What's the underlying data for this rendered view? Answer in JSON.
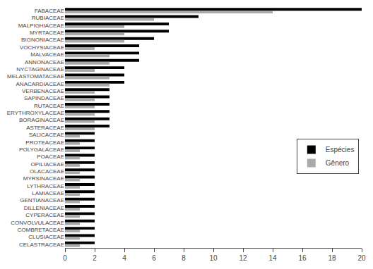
{
  "chart_data": {
    "type": "bar",
    "orientation": "horizontal",
    "categories": [
      "FABACEAE",
      "RUBIACEAE",
      "MALPIGHIACEAE",
      "MYRTACEAE",
      "BIGNONIACEAE",
      "VOCHYSIACEAE",
      "MALVACEAE",
      "ANNONACEAE",
      "NYCTAGINACEAE",
      "MELASTOMATACEAE",
      "ANACARDIACEAE",
      "VERBENACEAE",
      "SAPINDACEAE",
      "RUTACEAE",
      "ERYTHROXYLACEAE",
      "BORAGINACEAE",
      "ASTERACEAE",
      "SALICACEAE",
      "PROTEACEAE",
      "POLYGALACEAE",
      "POACEAE",
      "OPILIACEAE",
      "OLACACEAE",
      "MYRSINACEAE",
      "LYTHRACEAE",
      "LAMIACEAE",
      "GENTIANACEAE",
      "DILLENIACEAE",
      "CYPERACEAE",
      "CONVOLVULACEAE",
      "COMBRETACEAE",
      "CLUSIACEAE",
      "CELASTRACEAE"
    ],
    "series": [
      {
        "name": "Espécies",
        "color": "#000000",
        "values": [
          20,
          9,
          7,
          7,
          6,
          5,
          5,
          5,
          4,
          4,
          4,
          3,
          3,
          3,
          3,
          3,
          3,
          2,
          2,
          2,
          2,
          2,
          2,
          2,
          2,
          2,
          2,
          2,
          2,
          2,
          2,
          2,
          2
        ]
      },
      {
        "name": "Gênero",
        "color": "#aaaaaa",
        "values": [
          14,
          6,
          4,
          4,
          4,
          2,
          3,
          3,
          2,
          3,
          3,
          2,
          2,
          2,
          2,
          2,
          2,
          1,
          1,
          1,
          1,
          1,
          1,
          1,
          1,
          1,
          1,
          1,
          1,
          1,
          1,
          1,
          1
        ]
      }
    ],
    "xlim": [
      0,
      20
    ],
    "xticks": [
      0,
      2,
      4,
      6,
      8,
      10,
      12,
      14,
      16,
      18,
      20
    ],
    "grid": false,
    "legend": "right"
  }
}
